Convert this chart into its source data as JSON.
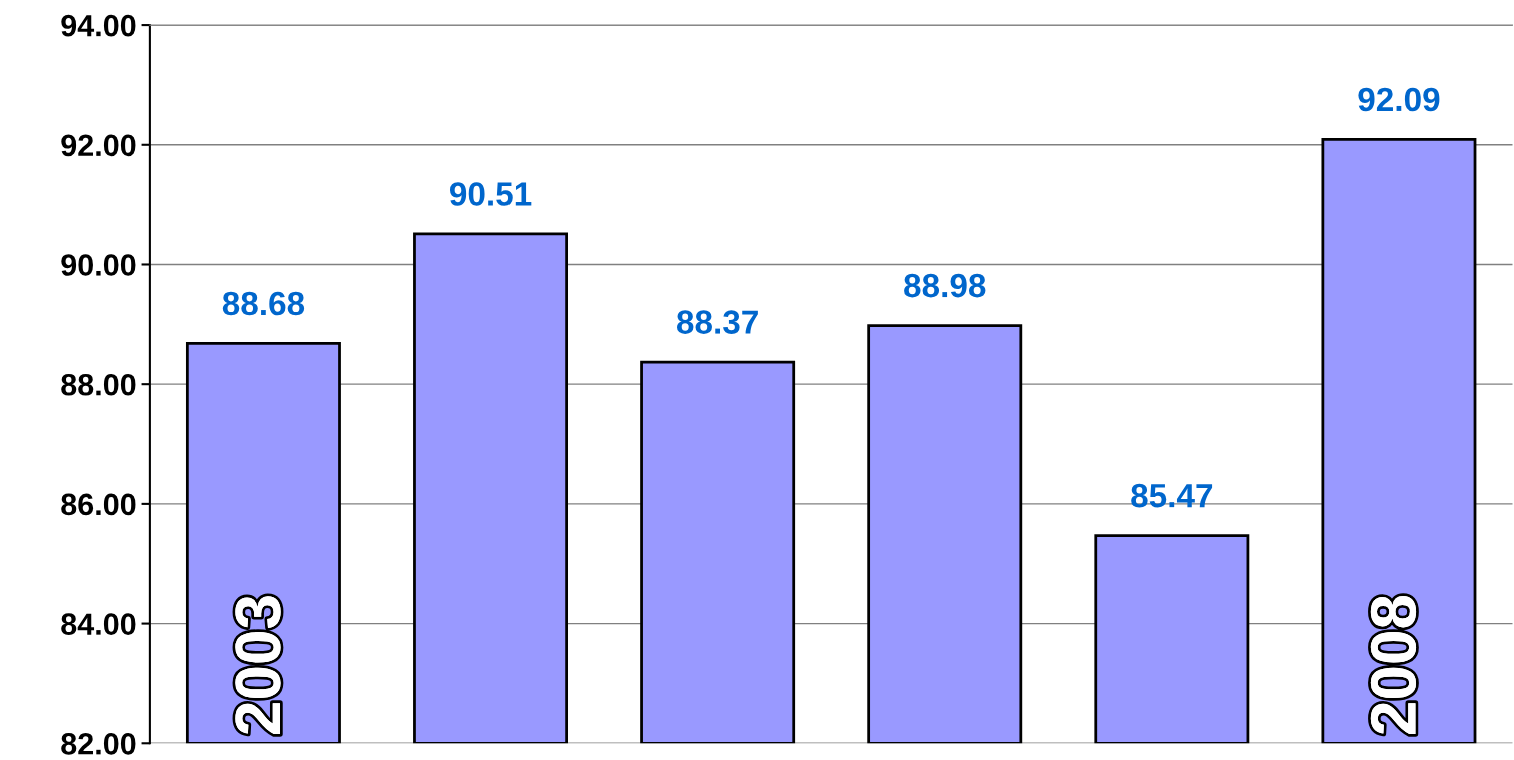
{
  "chart_data": {
    "type": "bar",
    "categories": [
      "2003",
      null,
      null,
      null,
      null,
      "2008"
    ],
    "values": [
      88.68,
      90.51,
      88.37,
      88.98,
      85.47,
      92.09
    ],
    "color": "#9999ff",
    "ylim": [
      82,
      94
    ],
    "yticks": [
      {
        "value": 82,
        "label": "82.00"
      },
      {
        "value": 84,
        "label": "84.00"
      },
      {
        "value": 86,
        "label": "86.00"
      },
      {
        "value": 88,
        "label": "88.00"
      },
      {
        "value": 90,
        "label": "90.00"
      },
      {
        "value": 92,
        "label": "92.00"
      },
      {
        "value": 94,
        "label": "94.00"
      }
    ],
    "grid": "y",
    "data_labels": true,
    "legend": false
  }
}
